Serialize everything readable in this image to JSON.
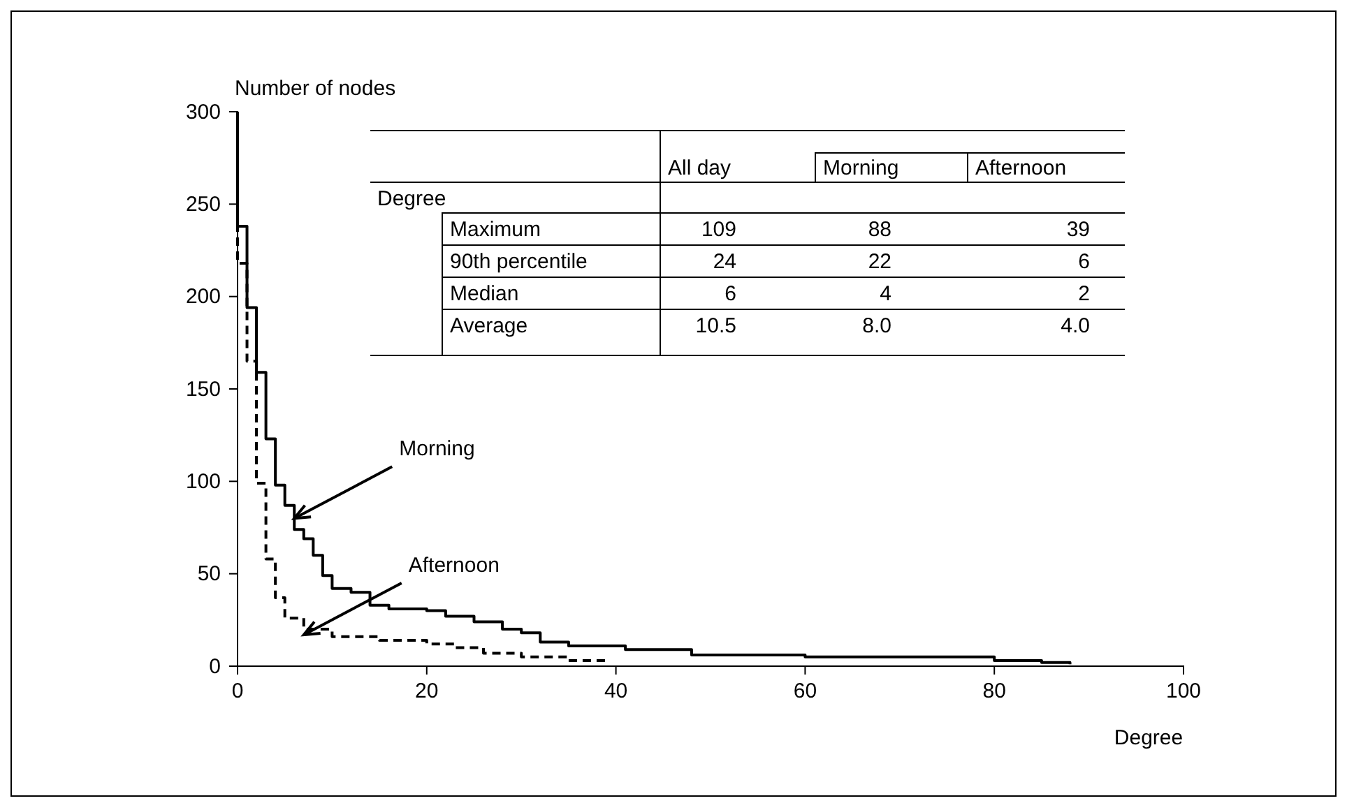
{
  "chart_data": {
    "type": "step",
    "xlabel": "Degree",
    "ylabel": "Number of nodes",
    "xlim": [
      0,
      100
    ],
    "xticks": [
      0,
      20,
      40,
      60,
      80,
      100
    ],
    "ylim": [
      0,
      300
    ],
    "yticks": [
      0,
      50,
      100,
      150,
      200,
      250,
      300
    ],
    "grid": false,
    "marker": "none",
    "series": [
      {
        "color": "#000000",
        "line_style": "solid",
        "x": [
          0,
          0,
          1,
          2,
          3,
          4,
          5,
          6,
          7,
          8,
          9,
          10,
          12,
          14,
          16,
          20,
          22,
          25,
          28,
          30,
          32,
          35,
          41,
          48,
          60,
          80,
          85,
          88
        ],
        "values": [
          300,
          238,
          194,
          159,
          123,
          98,
          87,
          74,
          69,
          60,
          49,
          42,
          40,
          33,
          31,
          30,
          27,
          24,
          20,
          18,
          13,
          11,
          9,
          6,
          5,
          3,
          2,
          1
        ]
      },
      {
        "color": "#000000",
        "line_style": "dashed",
        "x": [
          0,
          0,
          1,
          2,
          3,
          4,
          5,
          7,
          10,
          15,
          20,
          23,
          26,
          30,
          35,
          39
        ],
        "values": [
          300,
          218,
          165,
          99,
          58,
          37,
          26,
          20,
          16,
          14,
          12,
          10,
          7,
          5,
          3,
          1
        ]
      }
    ],
    "annotations": [
      {
        "text": "Morning",
        "x": 6,
        "y": 80
      },
      {
        "text": "Afternoon",
        "x": 7,
        "y": 17
      },
      "All day",
      "Morning",
      "Afternoon",
      "Degree",
      "Maximum",
      "109",
      "88",
      "39",
      "90th percentile",
      "24",
      "22",
      "6",
      "Median",
      "6",
      "4",
      "2",
      "Average",
      "10.5",
      "8.0",
      "4.0"
    ]
  }
}
